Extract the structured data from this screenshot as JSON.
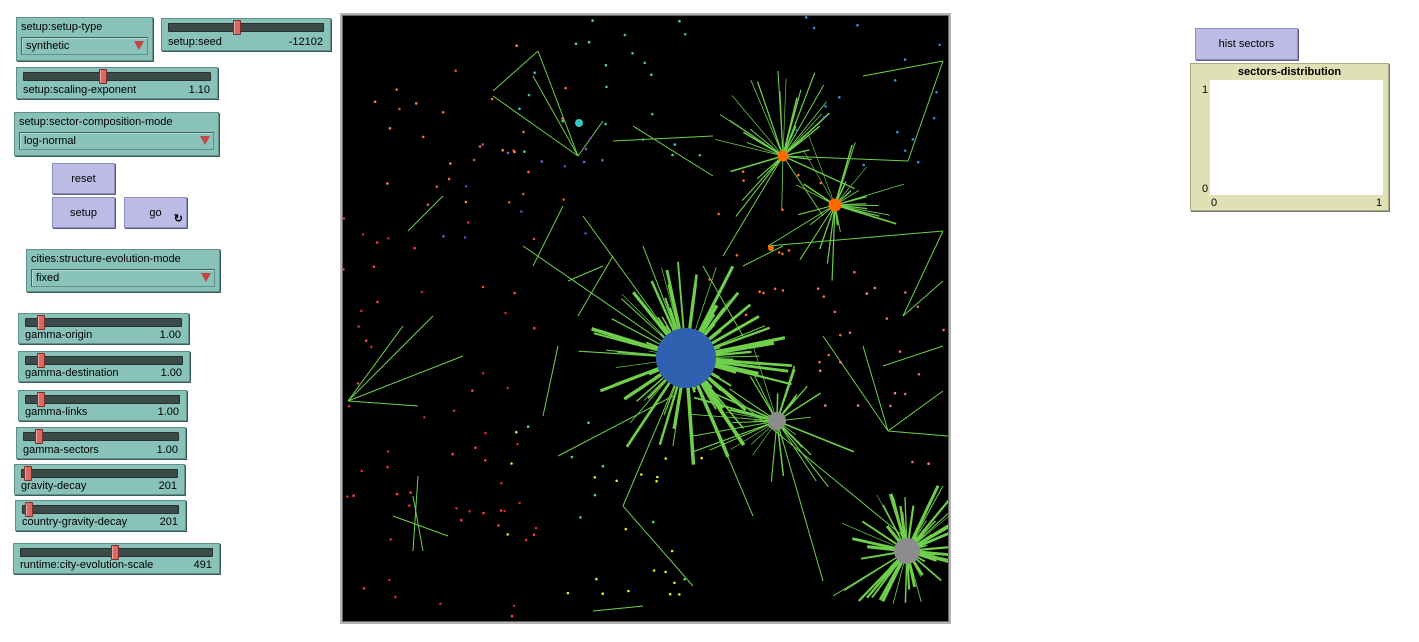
{
  "setup_type": {
    "label": "setup:setup-type",
    "value": "synthetic"
  },
  "setup_seed": {
    "label": "setup:seed",
    "value": "-12102",
    "fraction": 0.44
  },
  "scaling_exponent": {
    "label": "setup:scaling-exponent",
    "value": "1.10",
    "fraction": 0.42
  },
  "sector_composition": {
    "label": "setup:sector-composition-mode",
    "value": "log-normal"
  },
  "buttons": {
    "reset": "reset",
    "setup": "setup",
    "go": "go",
    "forever_icon": "↻",
    "hist_sectors": "hist sectors"
  },
  "structure_evolution": {
    "label": "cities:structure-evolution-mode",
    "value": "fixed"
  },
  "gamma_origin": {
    "label": "gamma-origin",
    "value": "1.00",
    "fraction": 0.08
  },
  "gamma_destination": {
    "label": "gamma-destination",
    "value": "1.00",
    "fraction": 0.08
  },
  "gamma_links": {
    "label": "gamma-links",
    "value": "1.00",
    "fraction": 0.08
  },
  "gamma_sectors": {
    "label": "gamma-sectors",
    "value": "1.00",
    "fraction": 0.08
  },
  "gravity_decay": {
    "label": "gravity-decay",
    "value": "201",
    "fraction": 0.02
  },
  "country_gravity_decay": {
    "label": "country-gravity-decay",
    "value": "201",
    "fraction": 0.02
  },
  "city_evolution_scale": {
    "label": "runtime:city-evolution-scale",
    "value": "491",
    "fraction": 0.49
  },
  "plot": {
    "title": "sectors-distribution",
    "y_max": "1",
    "y_min": "0",
    "x_min": "0",
    "x_max": "1"
  },
  "colors": {
    "slider_bg": "#88c2b9",
    "button_bg": "#bcbbe5",
    "plot_bg": "#e0e0b5",
    "link_green": "#6fcf4b",
    "big_city": "#3060b0",
    "orange_city": "#ff6a00",
    "gray_city": "#8c8c8c",
    "teal_city": "#35c7c2"
  }
}
